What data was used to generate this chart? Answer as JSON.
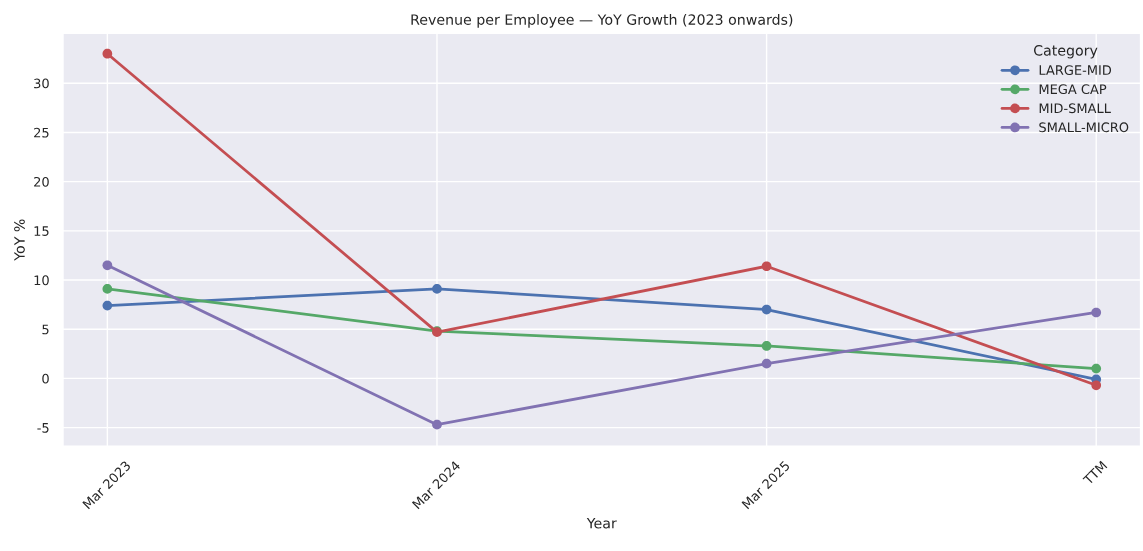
{
  "chart_data": {
    "type": "line",
    "title": "Revenue per Employee — YoY Growth (2023 onwards)",
    "xlabel": "Year",
    "ylabel": "YoY %",
    "legend_title": "Category",
    "categories": [
      "Mar 2023",
      "Mar 2024",
      "Mar 2025",
      "TTM"
    ],
    "series": [
      {
        "name": "LARGE-MID",
        "color": "#4c72b0",
        "values": [
          7.4,
          9.1,
          7.0,
          -0.1
        ]
      },
      {
        "name": "MEGA CAP",
        "color": "#55a868",
        "values": [
          9.1,
          4.8,
          3.3,
          1.0
        ]
      },
      {
        "name": "MID-SMALL",
        "color": "#c44e52",
        "values": [
          33.0,
          4.7,
          11.4,
          -0.7
        ]
      },
      {
        "name": "SMALL-MICRO",
        "color": "#8172b2",
        "values": [
          11.5,
          -4.7,
          1.5,
          6.7
        ]
      }
    ],
    "ylim": [
      -6.9,
      35.1
    ],
    "yticks": [
      -5,
      0,
      5,
      10,
      15,
      20,
      25,
      30
    ],
    "grid": true,
    "legend": "top right",
    "marker": "circle",
    "line_style": "solid"
  }
}
